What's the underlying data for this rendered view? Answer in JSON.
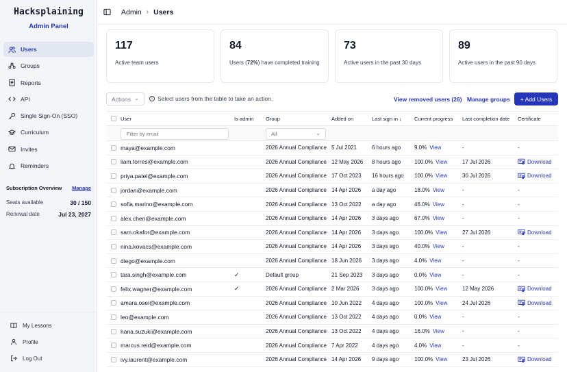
{
  "brand": {
    "title": "Hacksplaining",
    "subtitle": "Admin Panel"
  },
  "nav": [
    {
      "label": "Users",
      "icon": "users-icon",
      "active": true
    },
    {
      "label": "Groups",
      "icon": "groups-icon"
    },
    {
      "label": "Reports",
      "icon": "reports-icon"
    },
    {
      "label": "API",
      "icon": "code-icon"
    },
    {
      "label": "Single Sign-On (SSO)",
      "icon": "key-icon"
    },
    {
      "label": "Curriculum",
      "icon": "graduation-cap-icon"
    },
    {
      "label": "Invites",
      "icon": "mail-icon"
    },
    {
      "label": "Reminders",
      "icon": "bell-icon"
    }
  ],
  "subscription": {
    "title": "Subscription Overview",
    "manage": "Manage",
    "seats_label": "Seats available",
    "seats_value": "30 / 150",
    "renewal_label": "Renewal date",
    "renewal_value": "Jul 23, 2027"
  },
  "bottom_nav": [
    {
      "label": "My Lessons",
      "icon": "lessons-icon"
    },
    {
      "label": "Profile",
      "icon": "profile-icon"
    },
    {
      "label": "Log Out",
      "icon": "logout-icon"
    }
  ],
  "breadcrumb": {
    "parent": "Admin",
    "separator": "›",
    "current": "Users"
  },
  "stats": [
    {
      "value": "117",
      "label": "Active team users"
    },
    {
      "value": "84",
      "label_pre": "Users (",
      "label_bold": "72%",
      "label_post": ") have completed training"
    },
    {
      "value": "73",
      "label": "Active users in the past 30 days"
    },
    {
      "value": "89",
      "label": "Active users in the past 90 days"
    }
  ],
  "toolbar": {
    "actions": "Actions",
    "hint": "Select users from the table to take an action.",
    "view_removed": "View removed users (26)",
    "manage_groups": "Manage groups",
    "add_users": "+ Add Users"
  },
  "table": {
    "headers": {
      "user": "User",
      "is_admin": "Is admin",
      "group": "Group",
      "added_on": "Added on",
      "last_sign_in": "Last sign in ↓",
      "current_progress": "Current progress",
      "last_completion": "Last completion date",
      "certificate": "Certificate"
    },
    "filter_placeholder": "Filter by email",
    "group_filter": "All",
    "view_label": "View",
    "download_label": "Download",
    "rows": [
      {
        "email": "maya@example.com",
        "admin": "",
        "group": "2026 Annual Compliance",
        "added": "5 Jul 2021",
        "signin": "6 hours ago",
        "progress": "9.0%",
        "completion": "-",
        "cert": "-"
      },
      {
        "email": "liam.torres@example.com",
        "admin": "",
        "group": "2026 Annual Compliance",
        "added": "12 May 2026",
        "signin": "8 hours ago",
        "progress": "100.0%",
        "completion": "17 Jul 2026",
        "cert": "download"
      },
      {
        "email": "priya.patel@example.com",
        "admin": "",
        "group": "2026 Annual Compliance",
        "added": "17 Oct 2023",
        "signin": "16 hours ago",
        "progress": "100.0%",
        "completion": "30 Jul 2026",
        "cert": "download"
      },
      {
        "email": "jordan@example.com",
        "admin": "",
        "group": "2026 Annual Compliance",
        "added": "14 Apr 2026",
        "signin": "a day ago",
        "progress": "18.0%",
        "completion": "-",
        "cert": "-"
      },
      {
        "email": "sofia.marino@example.com",
        "admin": "",
        "group": "2026 Annual Compliance",
        "added": "13 Oct 2022",
        "signin": "a day ago",
        "progress": "46.0%",
        "completion": "-",
        "cert": "-"
      },
      {
        "email": "alex.chen@example.com",
        "admin": "",
        "group": "2026 Annual Compliance",
        "added": "14 Apr 2026",
        "signin": "3 days ago",
        "progress": "67.0%",
        "completion": "-",
        "cert": "-"
      },
      {
        "email": "sam.okafor@example.com",
        "admin": "",
        "group": "2026 Annual Compliance",
        "added": "14 Apr 2026",
        "signin": "3 days ago",
        "progress": "100.0%",
        "completion": "27 Jul 2026",
        "cert": "download"
      },
      {
        "email": "nina.kovacs@example.com",
        "admin": "",
        "group": "2026 Annual Compliance",
        "added": "14 Apr 2026",
        "signin": "3 days ago",
        "progress": "40.0%",
        "completion": "-",
        "cert": "-"
      },
      {
        "email": "diego@example.com",
        "admin": "",
        "group": "2026 Annual Compliance",
        "added": "18 Jun 2026",
        "signin": "3 days ago",
        "progress": "4.0%",
        "completion": "-",
        "cert": "-"
      },
      {
        "email": "tara.singh@example.com",
        "admin": "✓",
        "group": "Default group",
        "added": "21 Sep 2023",
        "signin": "3 days ago",
        "progress": "0.0%",
        "completion": "-",
        "cert": "-"
      },
      {
        "email": "felix.wagner@example.com",
        "admin": "✓",
        "group": "2026 Annual Compliance",
        "added": "2 Mar 2026",
        "signin": "3 days ago",
        "progress": "100.0%",
        "completion": "12 May 2026",
        "cert": "download"
      },
      {
        "email": "amara.osei@example.com",
        "admin": "",
        "group": "2026 Annual Compliance",
        "added": "10 Jun 2022",
        "signin": "4 days ago",
        "progress": "100.0%",
        "completion": "24 Jul 2026",
        "cert": "download"
      },
      {
        "email": "leo@example.com",
        "admin": "",
        "group": "2026 Annual Compliance",
        "added": "13 Oct 2022",
        "signin": "4 days ago",
        "progress": "0.0%",
        "completion": "-",
        "cert": "-"
      },
      {
        "email": "hana.suzuki@example.com",
        "admin": "",
        "group": "2026 Annual Compliance",
        "added": "13 Oct 2022",
        "signin": "4 days ago",
        "progress": "16.0%",
        "completion": "-",
        "cert": "-"
      },
      {
        "email": "marcus.reid@example.com",
        "admin": "",
        "group": "2026 Annual Compliance",
        "added": "7 Apr 2022",
        "signin": "4 days ago",
        "progress": "4.0%",
        "completion": "-",
        "cert": "-"
      },
      {
        "email": "ivy.laurent@example.com",
        "admin": "",
        "group": "2026 Annual Compliance",
        "added": "14 Apr 2026",
        "signin": "9 days ago",
        "progress": "100.0%",
        "completion": "23 Jul 2026",
        "cert": "download"
      }
    ]
  }
}
